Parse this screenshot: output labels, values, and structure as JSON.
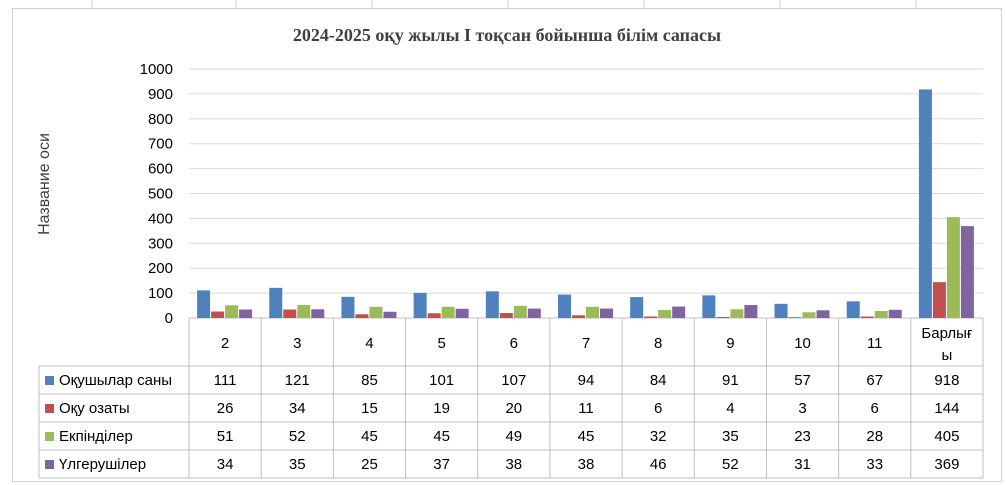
{
  "chart_data": {
    "type": "bar",
    "title": "2024-2025 оқу жылы І тоқсан бойынша білім сапасы",
    "ylabel": "Название оси",
    "xlabel": "",
    "ylim": [
      0,
      1000
    ],
    "yticks": [
      0,
      100,
      200,
      300,
      400,
      500,
      600,
      700,
      800,
      900,
      1000
    ],
    "categories": [
      "2",
      "3",
      "4",
      "5",
      "6",
      "7",
      "8",
      "9",
      "10",
      "11",
      "Барлығ|ы"
    ],
    "grid": true,
    "legend": "data-table",
    "series": [
      {
        "name": "Оқушылар саны",
        "color": "#4f81bd",
        "values": [
          111,
          121,
          85,
          101,
          107,
          94,
          84,
          91,
          57,
          67,
          918
        ]
      },
      {
        "name": "Оқу озаты",
        "color": "#c0504d",
        "values": [
          26,
          34,
          15,
          19,
          20,
          11,
          6,
          4,
          3,
          6,
          144
        ]
      },
      {
        "name": "Екпінділер",
        "color": "#9bbb59",
        "values": [
          51,
          52,
          45,
          45,
          49,
          45,
          32,
          35,
          23,
          28,
          405
        ]
      },
      {
        "name": "Үлгерушілер",
        "color": "#8064a2",
        "values": [
          34,
          35,
          25,
          37,
          38,
          38,
          46,
          52,
          31,
          33,
          369
        ]
      }
    ]
  }
}
